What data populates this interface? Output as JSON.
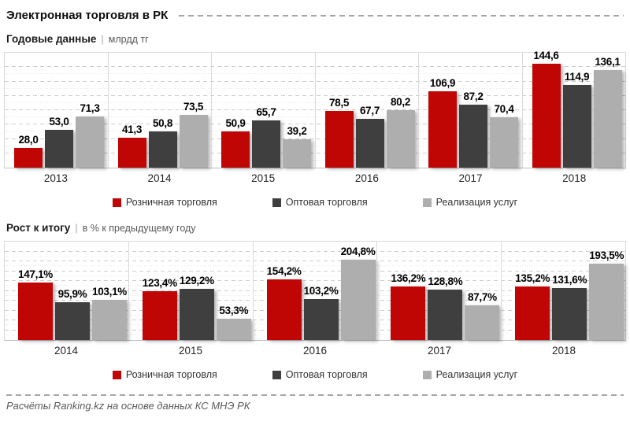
{
  "header": {
    "title": "Электронная торговля в РК"
  },
  "legend": [
    {
      "key": "retail",
      "label": "Розничная торговля",
      "color": "#c00505"
    },
    {
      "key": "wholesale",
      "label": "Оптовая торговля",
      "color": "#3f3f3f"
    },
    {
      "key": "services",
      "label": "Реализация услуг",
      "color": "#aeaeae"
    }
  ],
  "chart_data": [
    {
      "type": "bar",
      "title": "Годовые данные",
      "unit_label": "млрдд тг",
      "categories": [
        "2013",
        "2014",
        "2015",
        "2016",
        "2017",
        "2018"
      ],
      "series": [
        {
          "key": "retail",
          "name": "Розничная торговля",
          "color": "#c00505",
          "values": [
            28.0,
            41.3,
            50.9,
            78.5,
            106.9,
            144.6
          ],
          "labels": [
            "28,0",
            "41,3",
            "50,9",
            "78,5",
            "106,9",
            "144,6"
          ]
        },
        {
          "key": "wholesale",
          "name": "Оптовая торговля",
          "color": "#3f3f3f",
          "values": [
            53.0,
            50.8,
            65.7,
            67.7,
            87.2,
            114.9
          ],
          "labels": [
            "53,0",
            "50,8",
            "65,7",
            "67,7",
            "87,2",
            "114,9"
          ]
        },
        {
          "key": "services",
          "name": "Реализация услуг",
          "color": "#aeaeae",
          "values": [
            71.3,
            73.5,
            39.2,
            80.2,
            70.4,
            136.1
          ],
          "labels": [
            "71,3",
            "73,5",
            "39,2",
            "80,2",
            "70,4",
            "136,1"
          ]
        }
      ],
      "ylim": [
        0,
        160
      ],
      "grid_major_step": 20,
      "grid": "dashed-horizontal",
      "legend_position": "bottom"
    },
    {
      "type": "bar",
      "title": "Рост к итогу",
      "unit_label": "в % к предыдущему году",
      "categories": [
        "2014",
        "2015",
        "2016",
        "2017",
        "2018"
      ],
      "series": [
        {
          "key": "retail",
          "name": "Розничная торговля",
          "color": "#c00505",
          "values": [
            147.1,
            123.4,
            154.2,
            136.2,
            135.2
          ],
          "labels": [
            "147,1%",
            "123,4%",
            "154,2%",
            "136,2%",
            "135,2%"
          ]
        },
        {
          "key": "wholesale",
          "name": "Оптовая торговля",
          "color": "#3f3f3f",
          "values": [
            95.9,
            129.2,
            103.2,
            128.8,
            131.6
          ],
          "labels": [
            "95,9%",
            "129,2%",
            "103,2%",
            "128,8%",
            "131,6%"
          ]
        },
        {
          "key": "services",
          "name": "Реализация услуг",
          "color": "#aeaeae",
          "values": [
            103.1,
            53.3,
            204.8,
            87.7,
            193.5
          ],
          "labels": [
            "103,1%",
            "53,3%",
            "204,8%",
            "87,7%",
            "193,5%"
          ]
        }
      ],
      "ylim": [
        0,
        250
      ],
      "grid_major_step": 25,
      "grid": "dashed-horizontal",
      "legend_position": "bottom"
    }
  ],
  "footer": {
    "text": "Расчёты Ranking.kz  на основе данных КС МНЭ РК"
  }
}
